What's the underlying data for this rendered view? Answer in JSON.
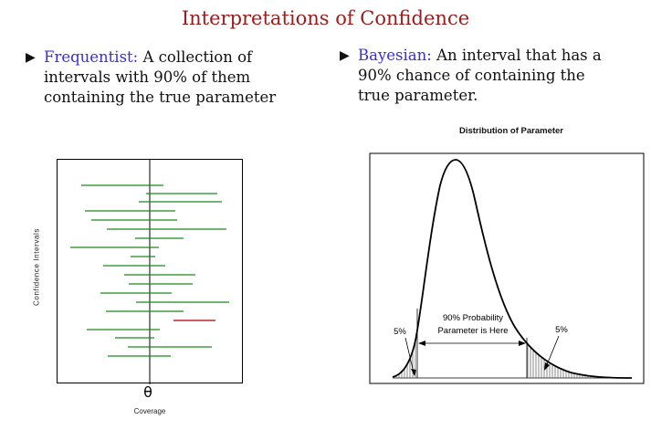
{
  "title": "Interpretations of Confidence",
  "frequentist": {
    "term": "Frequentist:",
    "text": "A collection of intervals with 90% of them containing the true parameter"
  },
  "bayesian": {
    "term": "Bayesian:",
    "text1": "An interval that has a 90% chance of containing the",
    "text2": "true parameter."
  },
  "left_figure": {
    "ylabel": "Confidence Intervals",
    "theta": "θ",
    "xlabel": "Coverage",
    "line_color": "#1a8a1a",
    "miss_color": "#c0262c"
  },
  "right_figure": {
    "title": "Distribution of Parameter",
    "center_label_1": "90% Probability",
    "center_label_2": "Parameter is Here",
    "left_tail": "5%",
    "right_tail": "5%"
  }
}
